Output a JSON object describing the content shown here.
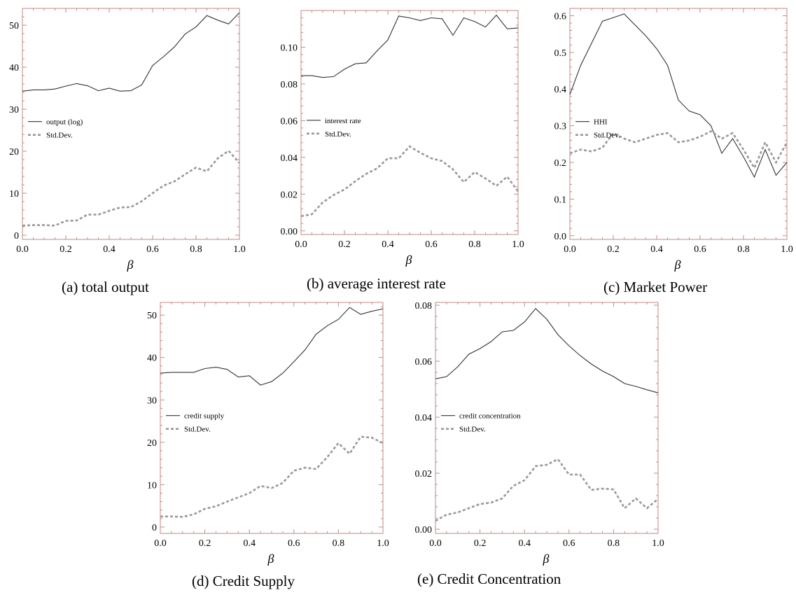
{
  "captions": {
    "a": "(a) total output",
    "b": "(b) average interest rate",
    "c": "(c) Market Power",
    "d": "(d) Credit Supply",
    "e": "(e) Credit Concentration"
  },
  "chart_data": [
    {
      "id": "a",
      "type": "line",
      "title": "",
      "xlabel": "β",
      "ylabel": "",
      "xlim": [
        0,
        1
      ],
      "ylim": [
        -1,
        54
      ],
      "xticks": [
        0,
        0.2,
        0.4,
        0.6,
        0.8,
        1
      ],
      "xticklabels": [
        "0.0",
        "0.2",
        "0.4",
        "0.6",
        "0.8",
        "1.0"
      ],
      "yticks": [
        0,
        10,
        20,
        30,
        40,
        50
      ],
      "yticklabels": [
        "0",
        "10",
        "20",
        "30",
        "40",
        "50"
      ],
      "legend_position": "center-left",
      "x": [
        0,
        0.05,
        0.1,
        0.15,
        0.2,
        0.25,
        0.3,
        0.35,
        0.4,
        0.45,
        0.5,
        0.55,
        0.6,
        0.65,
        0.7,
        0.75,
        0.8,
        0.85,
        0.9,
        0.95,
        1.0
      ],
      "series": [
        {
          "name": "output (log)",
          "style": "solid",
          "values": [
            34.3,
            34.6,
            34.6,
            34.8,
            35.5,
            36.1,
            35.6,
            34.4,
            35.0,
            34.3,
            34.4,
            35.8,
            40.4,
            42.5,
            44.8,
            47.9,
            49.6,
            52.3,
            51.2,
            50.3,
            53.0
          ]
        },
        {
          "name": "Std.Dev.",
          "style": "dashed",
          "values": [
            2.3,
            2.4,
            2.4,
            2.3,
            3.4,
            3.5,
            4.9,
            4.9,
            5.8,
            6.6,
            6.7,
            8.1,
            10.0,
            11.8,
            12.8,
            14.5,
            16.1,
            15.2,
            18.3,
            20.1,
            17.2
          ]
        }
      ]
    },
    {
      "id": "b",
      "type": "line",
      "title": "",
      "xlabel": "β",
      "ylabel": "",
      "xlim": [
        0,
        1
      ],
      "ylim": [
        -0.002,
        0.12
      ],
      "xticks": [
        0,
        0.2,
        0.4,
        0.6,
        0.8,
        1
      ],
      "xticklabels": [
        "0.0",
        "0.2",
        "0.4",
        "0.6",
        "0.8",
        "1.0"
      ],
      "yticks": [
        0,
        0.02,
        0.04,
        0.06,
        0.08,
        0.1
      ],
      "yticklabels": [
        "0.00",
        "0.02",
        "0.04",
        "0.06",
        "0.08",
        "0.10"
      ],
      "legend_position": "center-left",
      "x": [
        0,
        0.05,
        0.1,
        0.15,
        0.2,
        0.25,
        0.3,
        0.35,
        0.4,
        0.45,
        0.5,
        0.55,
        0.6,
        0.65,
        0.7,
        0.75,
        0.8,
        0.85,
        0.9,
        0.95,
        1.0
      ],
      "series": [
        {
          "name": "interest rate",
          "style": "solid",
          "values": [
            0.0845,
            0.0845,
            0.0835,
            0.084,
            0.088,
            0.091,
            0.0915,
            0.098,
            0.104,
            0.117,
            0.116,
            0.1145,
            0.116,
            0.1155,
            0.1065,
            0.116,
            0.114,
            0.111,
            0.1175,
            0.11,
            0.1105
          ]
        },
        {
          "name": "Std.Dev.",
          "style": "dashed",
          "values": [
            0.008,
            0.009,
            0.0155,
            0.0195,
            0.0225,
            0.027,
            0.031,
            0.034,
            0.0395,
            0.0395,
            0.046,
            0.0425,
            0.0395,
            0.038,
            0.0335,
            0.0265,
            0.032,
            0.0285,
            0.0245,
            0.0295,
            0.0215
          ]
        }
      ]
    },
    {
      "id": "c",
      "type": "line",
      "title": "",
      "xlabel": "β",
      "ylabel": "",
      "xlim": [
        0,
        1
      ],
      "ylim": [
        -0.01,
        0.62
      ],
      "xticks": [
        0,
        0.2,
        0.4,
        0.6,
        0.8,
        1
      ],
      "xticklabels": [
        "0.0",
        "0.2",
        "0.4",
        "0.6",
        "0.8",
        "1.0"
      ],
      "yticks": [
        0,
        0.1,
        0.2,
        0.3,
        0.4,
        0.5,
        0.6
      ],
      "yticklabels": [
        "0.0",
        "0.1",
        "0.2",
        "0.3",
        "0.4",
        "0.5",
        "0.6"
      ],
      "legend_position": "center-left",
      "x": [
        0,
        0.05,
        0.1,
        0.15,
        0.2,
        0.25,
        0.3,
        0.35,
        0.4,
        0.45,
        0.5,
        0.55,
        0.6,
        0.65,
        0.7,
        0.75,
        0.8,
        0.85,
        0.9,
        0.95,
        1.0
      ],
      "series": [
        {
          "name": "HHI",
          "style": "solid",
          "values": [
            0.385,
            0.465,
            0.525,
            0.585,
            0.595,
            0.605,
            0.575,
            0.545,
            0.51,
            0.465,
            0.37,
            0.34,
            0.33,
            0.3,
            0.225,
            0.265,
            0.215,
            0.16,
            0.235,
            0.165,
            0.2
          ]
        },
        {
          "name": "Std.Dev.",
          "style": "dashed",
          "values": [
            0.225,
            0.235,
            0.23,
            0.24,
            0.28,
            0.265,
            0.255,
            0.265,
            0.275,
            0.28,
            0.255,
            0.26,
            0.27,
            0.285,
            0.265,
            0.28,
            0.235,
            0.185,
            0.255,
            0.2,
            0.255
          ]
        }
      ]
    },
    {
      "id": "d",
      "type": "line",
      "title": "",
      "xlabel": "β",
      "ylabel": "",
      "xlim": [
        0,
        1
      ],
      "ylim": [
        -1.5,
        53
      ],
      "xticks": [
        0,
        0.2,
        0.4,
        0.6,
        0.8,
        1
      ],
      "xticklabels": [
        "0.0",
        "0.2",
        "0.4",
        "0.6",
        "0.8",
        "1.0"
      ],
      "yticks": [
        0,
        10,
        20,
        30,
        40,
        50
      ],
      "yticklabels": [
        "0",
        "10",
        "20",
        "30",
        "40",
        "50"
      ],
      "legend_position": "center-left",
      "x": [
        0,
        0.05,
        0.1,
        0.15,
        0.2,
        0.25,
        0.3,
        0.35,
        0.4,
        0.45,
        0.5,
        0.55,
        0.6,
        0.65,
        0.7,
        0.75,
        0.8,
        0.85,
        0.9,
        0.95,
        1.0
      ],
      "series": [
        {
          "name": "credit supply",
          "style": "solid",
          "values": [
            36.3,
            36.5,
            36.5,
            36.5,
            37.4,
            37.7,
            37.2,
            35.4,
            35.7,
            33.5,
            34.3,
            36.3,
            39.0,
            41.8,
            45.5,
            47.5,
            49.0,
            51.8,
            50.2,
            50.9,
            51.5
          ]
        },
        {
          "name": "Std.Dev.",
          "style": "dashed",
          "values": [
            2.5,
            2.5,
            2.4,
            3.0,
            4.3,
            4.9,
            6.0,
            7.0,
            8.0,
            9.7,
            9.2,
            10.4,
            13.3,
            14.0,
            13.7,
            16.5,
            19.8,
            17.3,
            21.3,
            21.1,
            19.8
          ]
        }
      ]
    },
    {
      "id": "e",
      "type": "line",
      "title": "",
      "xlabel": "β",
      "ylabel": "",
      "xlim": [
        0,
        1
      ],
      "ylim": [
        -0.0015,
        0.081
      ],
      "xticks": [
        0,
        0.2,
        0.4,
        0.6,
        0.8,
        1
      ],
      "xticklabels": [
        "0.0",
        "0.2",
        "0.4",
        "0.6",
        "0.8",
        "1.0"
      ],
      "yticks": [
        0,
        0.02,
        0.04,
        0.06,
        0.08
      ],
      "yticklabels": [
        "0.00",
        "0.02",
        "0.04",
        "0.06",
        "0.08"
      ],
      "legend_position": "center-left",
      "x": [
        0,
        0.05,
        0.1,
        0.15,
        0.2,
        0.25,
        0.3,
        0.35,
        0.4,
        0.45,
        0.5,
        0.55,
        0.6,
        0.65,
        0.7,
        0.75,
        0.8,
        0.85,
        0.9,
        0.95,
        1.0
      ],
      "series": [
        {
          "name": "credit concentration",
          "style": "solid",
          "values": [
            0.0537,
            0.0545,
            0.058,
            0.0625,
            0.0645,
            0.067,
            0.0705,
            0.071,
            0.074,
            0.0788,
            0.075,
            0.0695,
            0.0655,
            0.062,
            0.059,
            0.0565,
            0.0545,
            0.052,
            0.051,
            0.0498,
            0.0487
          ]
        },
        {
          "name": "Std.Dev.",
          "style": "dashed",
          "values": [
            0.003,
            0.0052,
            0.006,
            0.0075,
            0.009,
            0.0095,
            0.011,
            0.0155,
            0.0175,
            0.0225,
            0.023,
            0.025,
            0.0195,
            0.0195,
            0.014,
            0.0145,
            0.0142,
            0.0075,
            0.011,
            0.0075,
            0.0108
          ]
        }
      ]
    }
  ]
}
